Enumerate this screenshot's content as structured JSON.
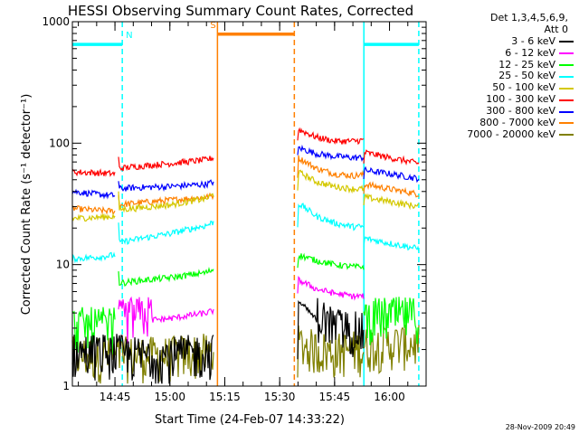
{
  "chart_data": {
    "type": "line",
    "title": "HESSI Observing Summary Count Rates, Corrected",
    "xlabel": "Start Time (24-Feb-07 14:33:22)",
    "ylabel": "Corrected Count Rate (s⁻¹ detector⁻¹)",
    "yscale": "log",
    "ylim": [
      1,
      1000
    ],
    "xlim": [
      "14:33:22",
      "16:10:00"
    ],
    "x_ticks": [
      "14:45",
      "15:00",
      "15:15",
      "15:30",
      "15:45",
      "16:00"
    ],
    "y_ticks": [
      {
        "value": 1,
        "label": "1"
      },
      {
        "value": 10,
        "label": "10"
      },
      {
        "value": 100,
        "label": "100"
      },
      {
        "value": 1000,
        "label": "1000"
      }
    ],
    "legend_position": "right",
    "legend_header": [
      "Det 1,3,4,5,6,9,",
      "Att 0"
    ],
    "series": [
      {
        "name": "3 - 6 keV",
        "color": "#000000",
        "segments": [
          {
            "x": [
              "14:33:22",
              "14:45",
              "14:50",
              "15:00",
              "15:10",
              "15:12"
            ],
            "y": [
              1.7,
              1.7,
              1.6,
              1.6,
              1.7,
              1.7
            ]
          },
          {
            "x": [
              "15:35",
              "15:40",
              "15:45",
              "15:50",
              "15:53"
            ],
            "y": [
              5.0,
              3.5,
              2.8,
              2.6,
              2.5
            ]
          }
        ]
      },
      {
        "name": "6 - 12 keV",
        "color": "#ff00ff",
        "segments": [
          {
            "x": [
              "14:46",
              "14:50",
              "15:00",
              "15:10",
              "15:12"
            ],
            "y": [
              3.2,
              3.4,
              3.6,
              4.0,
              4.2
            ]
          },
          {
            "x": [
              "15:35",
              "15:40",
              "15:45",
              "15:50",
              "15:53"
            ],
            "y": [
              7.5,
              6.3,
              5.8,
              5.5,
              5.5
            ]
          }
        ]
      },
      {
        "name": "12 - 25 keV",
        "color": "#00ff00",
        "segments": [
          {
            "x": [
              "14:33:22",
              "14:45"
            ],
            "y": [
              2.8,
              2.8
            ]
          },
          {
            "x": [
              "14:46",
              "14:50",
              "15:00",
              "15:10",
              "15:12"
            ],
            "y": [
              7.0,
              7.3,
              7.8,
              8.6,
              9.2
            ]
          },
          {
            "x": [
              "15:35",
              "15:40",
              "15:45",
              "15:50",
              "15:53"
            ],
            "y": [
              12.0,
              10.8,
              10.0,
              9.6,
              9.6
            ]
          },
          {
            "x": [
              "15:53",
              "16:00",
              "16:08"
            ],
            "y": [
              3.3,
              3.4,
              3.4
            ]
          }
        ]
      },
      {
        "name": "25 - 50 keV",
        "color": "#00ffff",
        "segments": [
          {
            "x": [
              "14:33:22",
              "14:40",
              "14:45"
            ],
            "y": [
              11.2,
              11.5,
              12.0
            ]
          },
          {
            "x": [
              "14:46",
              "14:50",
              "15:00",
              "15:10",
              "15:12"
            ],
            "y": [
              15.2,
              16.0,
              18.0,
              21.0,
              22.5
            ]
          },
          {
            "x": [
              "15:35",
              "15:40",
              "15:45",
              "15:50",
              "15:53"
            ],
            "y": [
              32.0,
              25.0,
              22.0,
              20.5,
              20.5
            ]
          },
          {
            "x": [
              "15:53",
              "16:00",
              "16:08"
            ],
            "y": [
              16.5,
              15.0,
              13.5
            ]
          }
        ]
      },
      {
        "name": "50 - 100 keV",
        "color": "#d4c800",
        "segments": [
          {
            "x": [
              "14:33:22",
              "14:40",
              "14:45"
            ],
            "y": [
              24.0,
              24.5,
              25.0
            ]
          },
          {
            "x": [
              "14:46",
              "14:50",
              "15:00",
              "15:10",
              "15:12"
            ],
            "y": [
              28.5,
              29.0,
              31.0,
              35.0,
              38.0
            ]
          },
          {
            "x": [
              "15:35",
              "15:40",
              "15:45",
              "15:50",
              "15:53"
            ],
            "y": [
              58.0,
              48.0,
              44.0,
              42.0,
              42.0
            ]
          },
          {
            "x": [
              "15:53",
              "16:00",
              "16:08"
            ],
            "y": [
              36.0,
              33.0,
              30.0
            ]
          }
        ]
      },
      {
        "name": "100 - 300 keV",
        "color": "#ff0000",
        "segments": [
          {
            "x": [
              "14:33:22",
              "14:40",
              "14:45"
            ],
            "y": [
              58.0,
              57.0,
              56.0
            ]
          },
          {
            "x": [
              "14:46",
              "14:50",
              "15:00",
              "15:10",
              "15:12"
            ],
            "y": [
              62.0,
              64.0,
              68.0,
              73.0,
              76.0
            ]
          },
          {
            "x": [
              "15:35",
              "15:40",
              "15:45",
              "15:50",
              "15:53"
            ],
            "y": [
              130.0,
              112.0,
              104.0,
              104.0,
              106.0
            ]
          },
          {
            "x": [
              "15:53",
              "16:00",
              "16:08"
            ],
            "y": [
              84.0,
              76.0,
              68.0
            ]
          }
        ]
      },
      {
        "name": "300 - 800 keV",
        "color": "#0000ff",
        "segments": [
          {
            "x": [
              "14:33:22",
              "14:40",
              "14:45"
            ],
            "y": [
              40.0,
              38.0,
              37.0
            ]
          },
          {
            "x": [
              "14:46",
              "14:50",
              "15:00",
              "15:10",
              "15:12"
            ],
            "y": [
              42.0,
              43.0,
              44.0,
              46.0,
              48.0
            ]
          },
          {
            "x": [
              "15:35",
              "15:40",
              "15:45",
              "15:50",
              "15:53"
            ],
            "y": [
              92.0,
              82.0,
              78.0,
              76.0,
              76.0
            ]
          },
          {
            "x": [
              "15:53",
              "16:00",
              "16:08"
            ],
            "y": [
              60.0,
              56.0,
              51.0
            ]
          }
        ]
      },
      {
        "name": "800 - 7000 keV",
        "color": "#ff8000",
        "segments": [
          {
            "x": [
              "14:33:22",
              "14:40",
              "14:45"
            ],
            "y": [
              29.0,
              28.0,
              27.5
            ]
          },
          {
            "x": [
              "14:46",
              "14:50",
              "15:00",
              "15:10",
              "15:12"
            ],
            "y": [
              31.0,
              32.0,
              34.0,
              36.0,
              37.0
            ]
          },
          {
            "x": [
              "15:35",
              "15:40",
              "15:45",
              "15:50",
              "15:53"
            ],
            "y": [
              76.0,
              62.0,
              56.0,
              54.0,
              55.0
            ]
          },
          {
            "x": [
              "15:53",
              "16:00",
              "16:08"
            ],
            "y": [
              46.0,
              42.0,
              38.0
            ]
          }
        ]
      },
      {
        "name": "7000 - 20000 keV",
        "color": "#808000",
        "segments": [
          {
            "x": [
              "14:33:22",
              "14:45",
              "14:50",
              "15:00",
              "15:10",
              "15:12"
            ],
            "y": [
              1.6,
              1.6,
              1.6,
              1.6,
              1.7,
              1.7
            ]
          },
          {
            "x": [
              "15:35",
              "15:40",
              "15:45",
              "15:50",
              "15:53"
            ],
            "y": [
              2.0,
              1.8,
              1.7,
              1.8,
              1.8
            ]
          },
          {
            "x": [
              "15:53",
              "16:00",
              "16:08"
            ],
            "y": [
              1.9,
              2.0,
              2.0
            ]
          }
        ]
      }
    ],
    "events": [
      {
        "kind": "night",
        "label": "N",
        "start": "14:33:22",
        "end": "14:47",
        "color": "#00ffff",
        "level": 650
      },
      {
        "kind": "night",
        "label": "",
        "start": "15:53",
        "end": "16:08",
        "color": "#00ffff",
        "level": 650
      },
      {
        "kind": "saa",
        "label": "S",
        "start": "15:13",
        "end": "15:34",
        "color": "#ff8000",
        "level": 790
      }
    ],
    "timestamp": "28-Nov-2009 20:49"
  }
}
